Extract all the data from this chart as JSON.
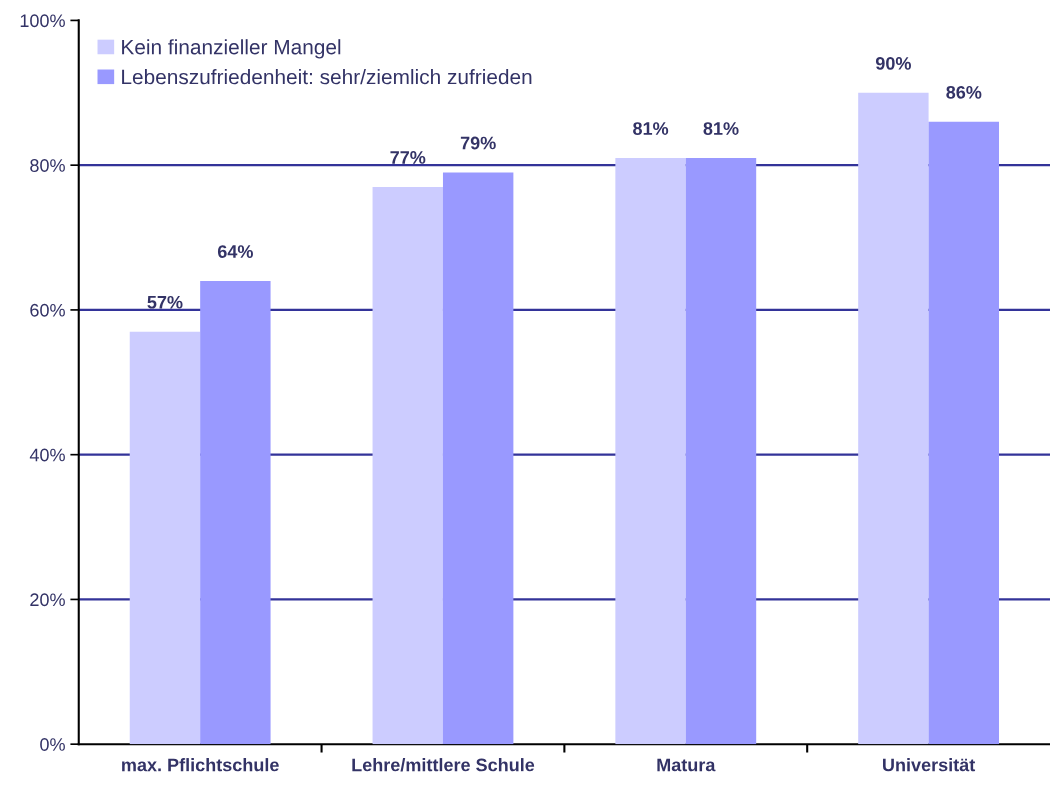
{
  "chart_data": {
    "type": "bar",
    "categories": [
      "max. Pflichtschule",
      "Lehre/mittlere Schule",
      "Matura",
      "Universität"
    ],
    "series": [
      {
        "name": "Kein finanzieller Mangel",
        "color": "#ccccff",
        "values": [
          57,
          77,
          81,
          90
        ],
        "value_labels": [
          "57%",
          "77%",
          "81%",
          "90%"
        ]
      },
      {
        "name": "Lebenszufriedenheit: sehr/ziemlich zufrieden",
        "color": "#9999ff",
        "values": [
          64,
          79,
          81,
          86
        ],
        "value_labels": [
          "64%",
          "79%",
          "81%",
          "86%"
        ]
      }
    ],
    "ylim": [
      0,
      100
    ],
    "yticks": [
      {
        "value": 0,
        "label": "0%"
      },
      {
        "value": 20,
        "label": "20%"
      },
      {
        "value": 40,
        "label": "40%"
      },
      {
        "value": 60,
        "label": "60%"
      },
      {
        "value": 80,
        "label": "80%"
      },
      {
        "value": 100,
        "label": "100%"
      }
    ],
    "grid": "y",
    "legend": "top left"
  }
}
